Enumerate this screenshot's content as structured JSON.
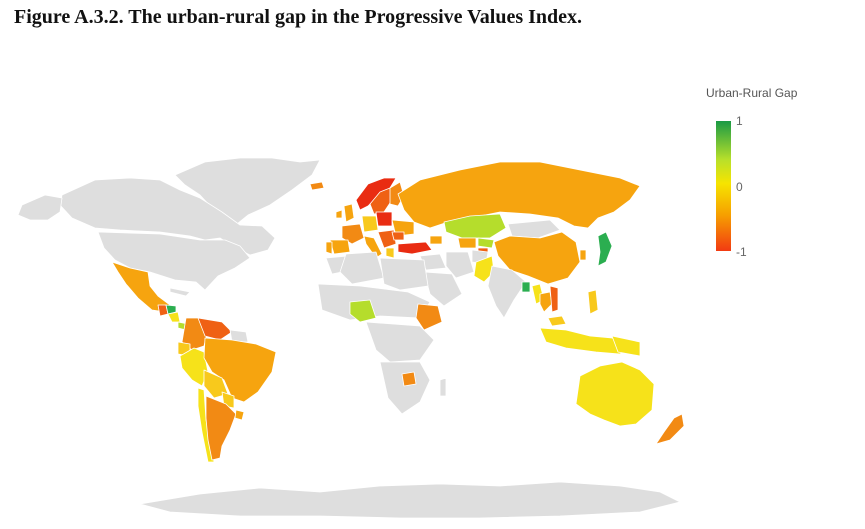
{
  "title": "Figure A.3.2. The urban-rural gap in the Progressive Values Index.",
  "legend": {
    "title": "Urban-Rural Gap",
    "ticks": {
      "max": "1",
      "mid": "0",
      "min": "-1"
    }
  },
  "colors": {
    "no_data": "#dedede",
    "border": "#ffffff",
    "green": "#2bae50",
    "lime": "#b5dd2c",
    "yellow": "#f6e21a",
    "yellow_orange": "#f8c91c",
    "orange": "#f6a40f",
    "dark_orange": "#f28a14",
    "orange_red": "#ef6114",
    "red": "#e92c12"
  }
}
